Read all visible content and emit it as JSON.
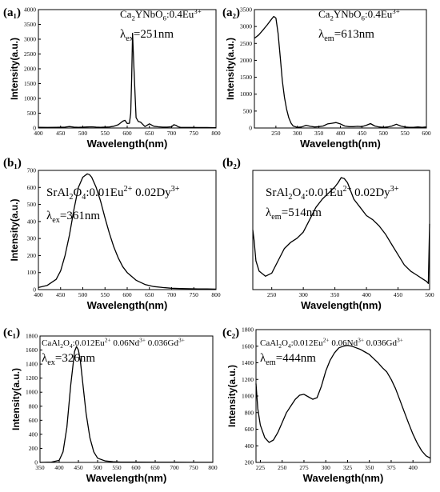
{
  "chart_data": [
    {
      "id": "a1",
      "type": "line",
      "panel_label": "(a₁)",
      "ann_lines": [
        {
          "parts": [
            [
              "Ca",
              ""
            ],
            [
              "2",
              "sub"
            ],
            [
              "YNbO",
              ""
            ],
            [
              "6",
              "sub"
            ],
            [
              ":0.4Eu",
              ""
            ],
            [
              "3+",
              "sup"
            ]
          ],
          "size": 13
        },
        {
          "parts": [
            [
              "λ",
              ""
            ],
            [
              "ex",
              "sub"
            ],
            [
              "=251nm",
              ""
            ]
          ],
          "size": 15
        }
      ],
      "xlabel": "Wavelength(nm)",
      "ylabel": "Intensity(a.u.)",
      "xlim": [
        400,
        800
      ],
      "ylim": [
        0,
        4000
      ],
      "xticks": [
        400,
        450,
        500,
        550,
        600,
        650,
        700,
        750,
        800
      ],
      "yticks": [
        0,
        500,
        1000,
        1500,
        2000,
        2500,
        3000,
        3500,
        4000
      ],
      "x": [
        400,
        420,
        440,
        460,
        470,
        480,
        490,
        500,
        510,
        520,
        530,
        540,
        550,
        560,
        570,
        580,
        590,
        595,
        600,
        605,
        608,
        610,
        612,
        615,
        620,
        625,
        630,
        640,
        650,
        660,
        670,
        680,
        690,
        700,
        705,
        710,
        715,
        720,
        740,
        760,
        780,
        800
      ],
      "y": [
        25,
        20,
        25,
        30,
        50,
        30,
        25,
        30,
        35,
        40,
        30,
        25,
        30,
        35,
        60,
        110,
        230,
        260,
        150,
        160,
        500,
        1700,
        3200,
        2100,
        350,
        220,
        200,
        50,
        140,
        60,
        40,
        30,
        30,
        40,
        110,
        90,
        40,
        25,
        20,
        15,
        15,
        10
      ]
    },
    {
      "id": "a2",
      "type": "line",
      "panel_label": "(a₂)",
      "ann_lines": [
        {
          "parts": [
            [
              "Ca",
              ""
            ],
            [
              "2",
              "sub"
            ],
            [
              "YNbO",
              ""
            ],
            [
              "6",
              "sub"
            ],
            [
              ":0.4Eu",
              ""
            ],
            [
              "3+",
              "sup"
            ]
          ],
          "size": 13
        },
        {
          "parts": [
            [
              "λ",
              ""
            ],
            [
              "em",
              "sub"
            ],
            [
              "=613nm",
              ""
            ]
          ],
          "size": 15
        }
      ],
      "xlabel": "Wavelength(nm)",
      "ylabel": "Intensity(a.u.)",
      "xlim": [
        200,
        600
      ],
      "ylim": [
        0,
        3500
      ],
      "xticks": [
        250,
        300,
        350,
        400,
        450,
        500,
        550,
        600
      ],
      "yticks": [
        0,
        500,
        1000,
        1500,
        2000,
        2500,
        3000,
        3500
      ],
      "x": [
        200,
        210,
        220,
        230,
        240,
        245,
        250,
        255,
        260,
        265,
        270,
        275,
        280,
        285,
        290,
        300,
        310,
        320,
        330,
        340,
        350,
        360,
        370,
        380,
        390,
        400,
        410,
        420,
        430,
        440,
        450,
        460,
        470,
        480,
        490,
        500,
        510,
        520,
        530,
        540,
        550,
        560,
        570,
        580,
        590,
        600
      ],
      "y": [
        2650,
        2750,
        2900,
        3050,
        3220,
        3300,
        3250,
        2800,
        2100,
        1400,
        900,
        550,
        300,
        150,
        60,
        20,
        30,
        80,
        50,
        30,
        40,
        60,
        120,
        140,
        160,
        120,
        60,
        40,
        40,
        50,
        40,
        80,
        130,
        60,
        30,
        20,
        30,
        60,
        110,
        60,
        30,
        20,
        20,
        30,
        20,
        30
      ]
    },
    {
      "id": "b1",
      "type": "line",
      "panel_label": "(b₁)",
      "ann_lines": [
        {
          "parts": [
            [
              "SrAl",
              ""
            ],
            [
              "2",
              "sub"
            ],
            [
              "O",
              ""
            ],
            [
              "4",
              "sub"
            ],
            [
              ":0.01Eu",
              ""
            ],
            [
              "2+",
              "sup"
            ],
            [
              " 0.02Dy",
              ""
            ],
            [
              "3+",
              "sup"
            ]
          ],
          "size": 15
        },
        {
          "parts": [
            [
              "λ",
              ""
            ],
            [
              "ex",
              "sub"
            ],
            [
              "=361nm",
              ""
            ]
          ],
          "size": 15
        }
      ],
      "xlabel": "Wavelength(nm)",
      "ylabel": "Intensity(a.u.)",
      "xlim": [
        400,
        800
      ],
      "ylim": [
        0,
        700
      ],
      "xticks": [
        400,
        450,
        500,
        550,
        600,
        650,
        700,
        750,
        800
      ],
      "yticks": [
        0,
        100,
        200,
        300,
        400,
        500,
        600,
        700
      ],
      "x": [
        400,
        420,
        440,
        450,
        460,
        470,
        480,
        490,
        500,
        510,
        515,
        520,
        530,
        540,
        550,
        560,
        570,
        580,
        590,
        600,
        620,
        640,
        660,
        680,
        700,
        720,
        740,
        760,
        780,
        800
      ],
      "y": [
        12,
        25,
        60,
        110,
        200,
        320,
        470,
        600,
        660,
        680,
        675,
        660,
        600,
        520,
        420,
        330,
        250,
        185,
        135,
        100,
        55,
        30,
        18,
        12,
        8,
        6,
        5,
        4,
        4,
        3
      ]
    },
    {
      "id": "b2",
      "type": "line",
      "panel_label": "(b₂)",
      "ann_lines": [
        {
          "parts": [
            [
              "SrAl",
              ""
            ],
            [
              "2",
              "sub"
            ],
            [
              "O",
              ""
            ],
            [
              "4",
              "sub"
            ],
            [
              ":0.01Eu",
              ""
            ],
            [
              "2+",
              "sup"
            ],
            [
              " 0.02Dy",
              ""
            ],
            [
              "3+",
              "sup"
            ]
          ],
          "size": 15
        },
        {
          "parts": [
            [
              "λ",
              ""
            ],
            [
              "em",
              "sub"
            ],
            [
              "=514nm",
              ""
            ]
          ],
          "size": 15
        }
      ],
      "xlabel": "Wavelength(nm)",
      "ylabel": "",
      "xlim": [
        220,
        500
      ],
      "ylim": [
        80,
        660
      ],
      "xticks": [
        250,
        300,
        350,
        400,
        450,
        500
      ],
      "yticks": [],
      "x": [
        220,
        222,
        225,
        230,
        240,
        250,
        260,
        270,
        280,
        290,
        300,
        310,
        320,
        330,
        340,
        350,
        355,
        360,
        365,
        370,
        380,
        390,
        400,
        410,
        420,
        430,
        440,
        450,
        460,
        470,
        480,
        490,
        495,
        498,
        500
      ],
      "y": [
        370,
        320,
        220,
        170,
        145,
        160,
        220,
        280,
        310,
        330,
        360,
        420,
        480,
        520,
        550,
        580,
        600,
        625,
        620,
        600,
        520,
        480,
        440,
        420,
        390,
        350,
        300,
        250,
        200,
        170,
        150,
        130,
        120,
        110,
        400
      ]
    },
    {
      "id": "c1",
      "type": "line",
      "panel_label": "(c₁)",
      "ann_lines": [
        {
          "parts": [
            [
              "CaAl",
              ""
            ],
            [
              "2",
              "sub"
            ],
            [
              "O",
              ""
            ],
            [
              "4",
              "sub"
            ],
            [
              ":0.012Eu",
              ""
            ],
            [
              "2+",
              "sup"
            ],
            [
              " 0.06Nd",
              ""
            ],
            [
              "3+",
              "sup"
            ],
            [
              " 0.036Gd",
              ""
            ],
            [
              "3+",
              "sup"
            ]
          ],
          "size": 11
        },
        {
          "parts": [
            [
              "λ",
              ""
            ],
            [
              "ex",
              "sub"
            ],
            [
              "=326nm",
              ""
            ]
          ],
          "size": 15
        }
      ],
      "xlabel": "Wavelength(nm)",
      "ylabel": "Intensity(a.u.)",
      "xlim": [
        350,
        800
      ],
      "ylim": [
        0,
        1800
      ],
      "xticks": [
        350,
        400,
        450,
        500,
        550,
        600,
        650,
        700,
        750,
        800
      ],
      "yticks": [
        0,
        200,
        400,
        600,
        800,
        1000,
        1200,
        1400,
        1600,
        1800
      ],
      "x": [
        350,
        380,
        400,
        410,
        420,
        430,
        440,
        445,
        450,
        455,
        460,
        470,
        480,
        490,
        500,
        520,
        540,
        560,
        600,
        650,
        700,
        750,
        800
      ],
      "y": [
        0,
        5,
        30,
        150,
        500,
        1100,
        1580,
        1650,
        1600,
        1450,
        1200,
        700,
        350,
        150,
        60,
        20,
        10,
        5,
        3,
        2,
        2,
        1,
        1
      ]
    },
    {
      "id": "c2",
      "type": "line",
      "panel_label": "(c₂)",
      "ann_lines": [
        {
          "parts": [
            [
              "CaAl",
              ""
            ],
            [
              "2",
              "sub"
            ],
            [
              "O",
              ""
            ],
            [
              "4",
              "sub"
            ],
            [
              ":0.012Eu",
              ""
            ],
            [
              "2+",
              "sup"
            ],
            [
              " 0.06Nd",
              ""
            ],
            [
              "3+",
              "sup"
            ],
            [
              " 0.036Gd",
              ""
            ],
            [
              "3+",
              "sup"
            ]
          ],
          "size": 11
        },
        {
          "parts": [
            [
              "λ",
              ""
            ],
            [
              "em",
              "sub"
            ],
            [
              "=444nm",
              ""
            ]
          ],
          "size": 15
        }
      ],
      "xlabel": "Wavelength(nm)",
      "ylabel": "Intensity(a.u.)",
      "xlim": [
        220,
        420
      ],
      "ylim": [
        200,
        1800
      ],
      "xticks": [
        225,
        250,
        275,
        300,
        325,
        350,
        375,
        400
      ],
      "yticks": [
        200,
        400,
        600,
        800,
        1000,
        1200,
        1400,
        1600,
        1800
      ],
      "x": [
        220,
        222,
        225,
        230,
        235,
        240,
        245,
        250,
        255,
        260,
        265,
        270,
        275,
        280,
        285,
        290,
        295,
        300,
        305,
        310,
        315,
        320,
        325,
        330,
        335,
        340,
        345,
        350,
        355,
        360,
        365,
        370,
        375,
        380,
        385,
        390,
        395,
        400,
        405,
        410,
        415,
        420
      ],
      "y": [
        1150,
        850,
        650,
        500,
        440,
        470,
        560,
        680,
        800,
        880,
        960,
        1010,
        1020,
        990,
        960,
        980,
        1120,
        1300,
        1430,
        1520,
        1580,
        1600,
        1610,
        1600,
        1580,
        1560,
        1530,
        1500,
        1450,
        1400,
        1340,
        1290,
        1200,
        1090,
        950,
        810,
        670,
        540,
        430,
        340,
        280,
        250
      ]
    }
  ]
}
